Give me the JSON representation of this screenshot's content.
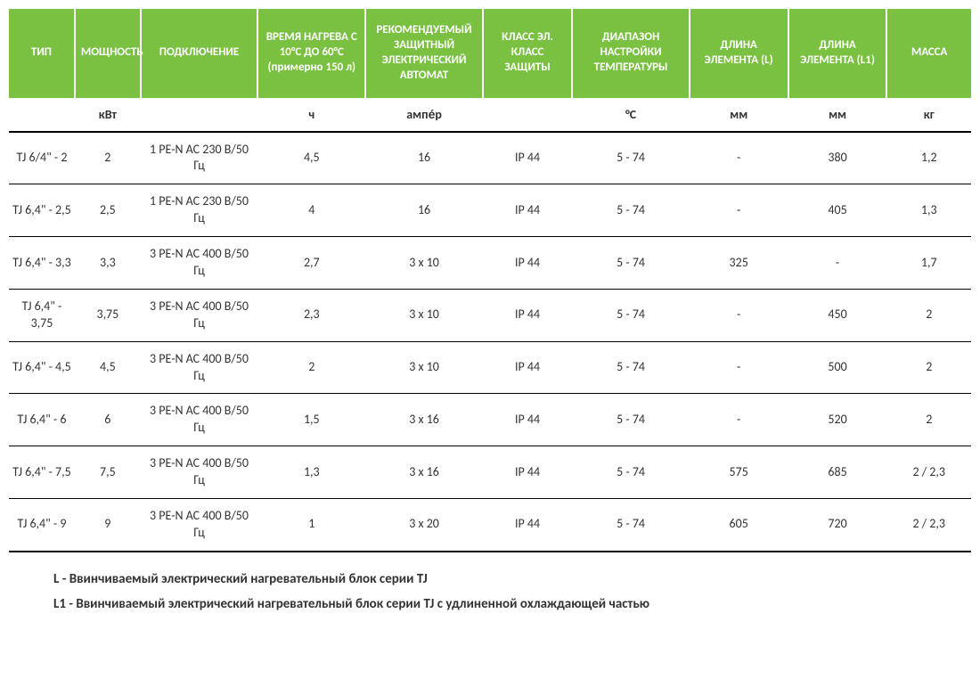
{
  "table": {
    "header_bg": "#7ac142",
    "header_fg": "#ffffff",
    "text_color": "#333333",
    "border_color": "#000000",
    "font_family": "Calibri",
    "header_fontsize": 13,
    "body_fontsize": 14,
    "columns": [
      {
        "key": "type",
        "label": "ТИП",
        "unit": "",
        "width": 72
      },
      {
        "key": "power",
        "label": "МОЩНОСТЬ",
        "unit": "кВт",
        "width": 72
      },
      {
        "key": "conn",
        "label": "ПОДКЛЮЧЕНИЕ",
        "unit": "",
        "width": 128
      },
      {
        "key": "heat",
        "label": "ВРЕМЯ НАГРЕВА С 10°С ДО 60°С",
        "label_suffix": "(примерно 150 л)",
        "unit": "ч",
        "width": 118
      },
      {
        "key": "fuse",
        "label": "РЕКОМЕНДУЕМЫЙ ЗАЩИТНЫЙ ЭЛЕКТРИЧЕСКИЙ АВТОМАТ",
        "unit": "ампе́р",
        "width": 128
      },
      {
        "key": "ip",
        "label": "КЛАСС ЭЛ. КЛАСС ЗАЩИТЫ",
        "unit": "",
        "width": 98
      },
      {
        "key": "temp",
        "label": "ДИАПАЗОН НАСТРОЙКИ ТЕМПЕРАТУРЫ",
        "unit": "°C",
        "width": 128
      },
      {
        "key": "l",
        "label": "ДЛИНА ЭЛЕМЕНТА (L)",
        "unit": "мм",
        "width": 108
      },
      {
        "key": "l1",
        "label": "ДЛИНА ЭЛЕМЕНТА (L1)",
        "unit": "мм",
        "width": 108
      },
      {
        "key": "mass",
        "label": "МАССА",
        "unit": "кг",
        "width": 92
      }
    ],
    "rows": [
      {
        "type": "TJ 6/4\" - 2",
        "power": "2",
        "conn": "1 PE-N AC 230 В/50 Гц",
        "heat": "4,5",
        "fuse": "16",
        "ip": "IP 44",
        "temp": "5 - 74",
        "l": "-",
        "l1": "380",
        "mass": "1,2"
      },
      {
        "type": "TJ 6,4\" - 2,5",
        "power": "2,5",
        "conn": "1 PE-N AC 230 В/50 Гц",
        "heat": "4",
        "fuse": "16",
        "ip": "IP 44",
        "temp": "5 - 74",
        "l": "-",
        "l1": "405",
        "mass": "1,3"
      },
      {
        "type": "TJ 6,4\" - 3,3",
        "power": "3,3",
        "conn": "3 PE-N AC 400 В/50 Гц",
        "heat": "2,7",
        "fuse": "3 x 10",
        "ip": "IP 44",
        "temp": "5 - 74",
        "l": "325",
        "l1": "-",
        "mass": "1,7"
      },
      {
        "type": "TJ 6,4\" - 3,75",
        "power": "3,75",
        "conn": "3 PE-N AC 400 В/50 Гц",
        "heat": "2,3",
        "fuse": "3 x 10",
        "ip": "IP 44",
        "temp": "5 - 74",
        "l": "-",
        "l1": "450",
        "mass": "2"
      },
      {
        "type": "TJ 6,4\" - 4,5",
        "power": "4,5",
        "conn": "3 PE-N AC 400 В/50 Гц",
        "heat": "2",
        "fuse": "3 x 10",
        "ip": "IP 44",
        "temp": "5 - 74",
        "l": "-",
        "l1": "500",
        "mass": "2"
      },
      {
        "type": "TJ 6,4\" - 6",
        "power": "6",
        "conn": "3 PE-N AC 400 В/50 Гц",
        "heat": "1,5",
        "fuse": "3 x 16",
        "ip": "IP 44",
        "temp": "5 - 74",
        "l": "-",
        "l1": "520",
        "mass": "2"
      },
      {
        "type": "TJ 6,4\" - 7,5",
        "power": "7,5",
        "conn": "3 PE-N AC 400 В/50 Гц",
        "heat": "1,3",
        "fuse": "3 x 16",
        "ip": "IP 44",
        "temp": "5 - 74",
        "l": "575",
        "l1": "685",
        "mass": "2 / 2,3"
      },
      {
        "type": "TJ 6,4\" - 9",
        "power": "9",
        "conn": "3 PE-N AC 400 В/50 Гц",
        "heat": "1",
        "fuse": "3 x 20",
        "ip": "IP 44",
        "temp": "5 - 74",
        "l": "605",
        "l1": "720",
        "mass": "2 / 2,3"
      }
    ]
  },
  "footnotes": {
    "l": "L - Ввинчиваемый электрический нагревательный блок серии TJ",
    "l1": "L1 - Ввинчиваемый электрический нагревательный блок серии TJ с удлиненной охлаждающей частью"
  }
}
